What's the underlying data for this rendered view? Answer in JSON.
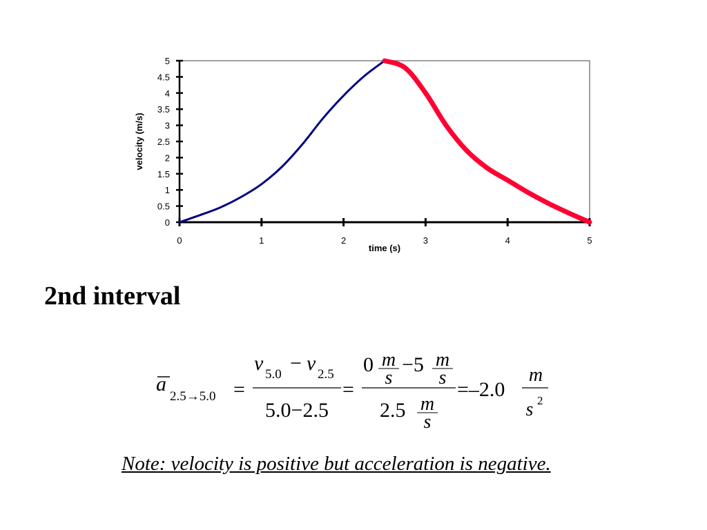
{
  "chart_data": {
    "type": "line",
    "xlabel": "time (s)",
    "ylabel": "velocity (m/s)",
    "xlim": [
      0,
      5
    ],
    "ylim": [
      0,
      5
    ],
    "x_ticks": [
      "0",
      "1",
      "2",
      "3",
      "4",
      "5"
    ],
    "y_ticks": [
      "0",
      "0.5",
      "1",
      "1.5",
      "2",
      "2.5",
      "3",
      "3.5",
      "4",
      "4.5",
      "5"
    ],
    "grid": false,
    "legend": "none",
    "series": [
      {
        "color": "#000080",
        "x": [
          0,
          0.25,
          0.5,
          0.75,
          1.0,
          1.25,
          1.5,
          1.75,
          2.0,
          2.25,
          2.5
        ],
        "y": [
          0,
          0.22,
          0.46,
          0.78,
          1.18,
          1.72,
          2.42,
          3.22,
          3.92,
          4.52,
          5.0
        ]
      },
      {
        "color": "#ff0033",
        "x": [
          2.5,
          2.75,
          3.0,
          3.25,
          3.5,
          3.75,
          4.0,
          4.25,
          4.5,
          4.75,
          5.0
        ],
        "y": [
          5.0,
          4.78,
          4.0,
          3.0,
          2.22,
          1.68,
          1.3,
          0.92,
          0.58,
          0.28,
          0
        ]
      }
    ]
  },
  "heading": "2nd interval",
  "equation": {
    "lhs_symbol": "a",
    "lhs_subscript": "2.5→5.0",
    "eq": "=",
    "f1_num_v1": "v",
    "f1_num_sub1": "5.0",
    "f1_num_minus": "−",
    "f1_num_v2": "v",
    "f1_num_sub2": "2.5",
    "f1_den": "5.0−2.5",
    "f2_num_a": "0",
    "f2_num_unit_top": "m",
    "f2_num_unit_bottom": "s",
    "f2_num_minus5": "−5",
    "f2_den": "2.5",
    "result": "=–2.0",
    "result_unit_top": "m",
    "result_unit_bottom": "s",
    "result_exp": "2"
  },
  "note": "Note: velocity is positive but acceleration is negative."
}
